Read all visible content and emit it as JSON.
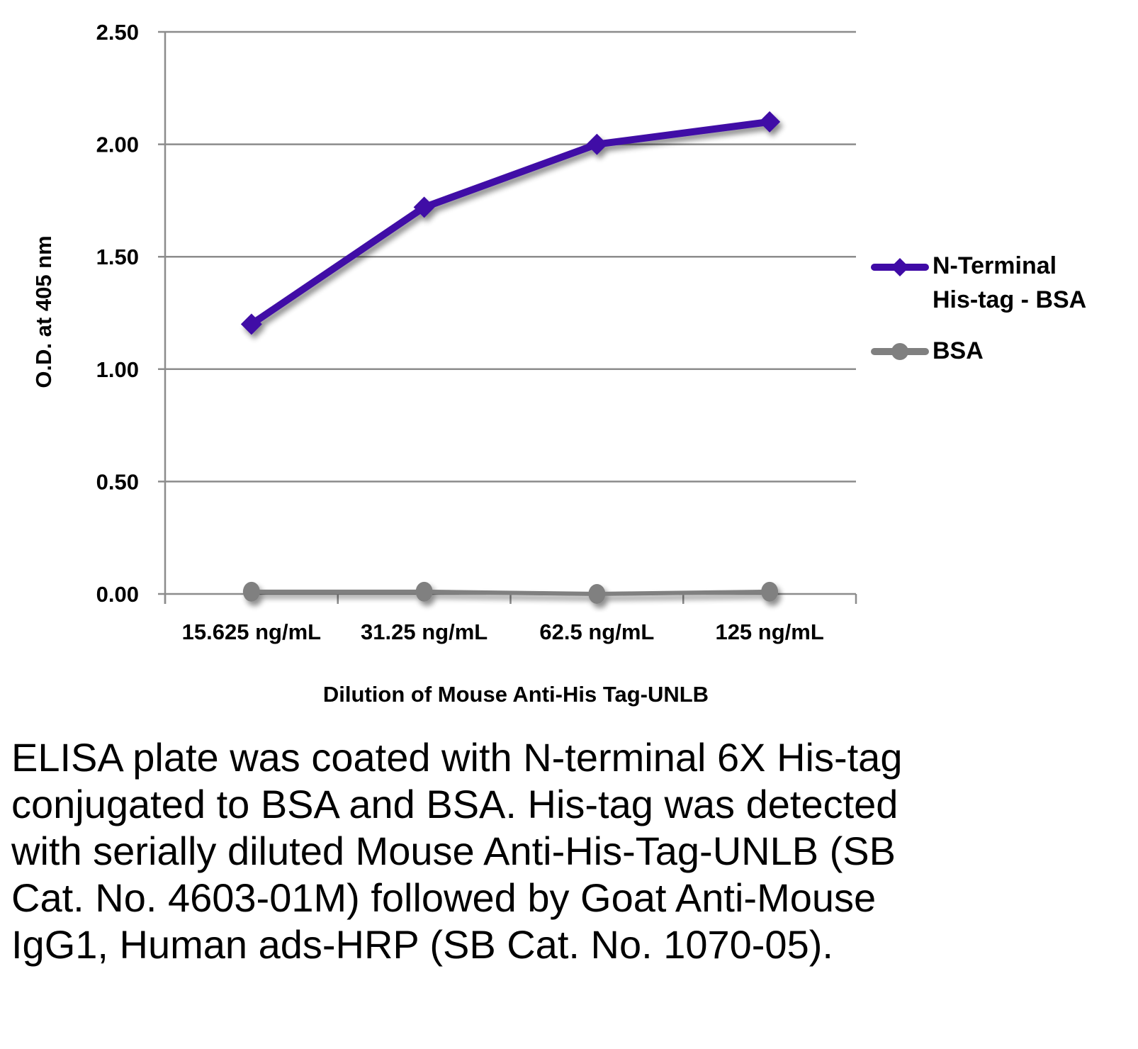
{
  "chart_data": {
    "type": "line",
    "title": "",
    "xlabel": "Dilution of Mouse Anti-His Tag-UNLB",
    "ylabel": "O.D. at 405 nm",
    "categories": [
      "15.625 ng/mL",
      "31.25 ng/mL",
      "62.5 ng/mL",
      "125 ng/mL"
    ],
    "ylim": [
      0,
      2.5
    ],
    "yticks": [
      0,
      0.5,
      1.0,
      1.5,
      2.0,
      2.5
    ],
    "ytick_labels": [
      "0.00",
      "0.50",
      "1.00",
      "1.50",
      "2.00",
      "2.50"
    ],
    "grid": true,
    "legend_position": "right",
    "series": [
      {
        "name": "N-Terminal His-tag - BSA",
        "legend_lines": [
          "N-Terminal",
          "His-tag - BSA"
        ],
        "values": [
          1.2,
          1.72,
          2.0,
          2.1
        ],
        "color": "#3f0aa6",
        "marker": "diamond"
      },
      {
        "name": "BSA",
        "legend_lines": [
          "BSA"
        ],
        "values": [
          0.01,
          0.01,
          0.0,
          0.01
        ],
        "color": "#808080",
        "marker": "circle"
      }
    ]
  },
  "caption": "ELISA plate was coated with N-terminal 6X His-tag conjugated to BSA and BSA.  His-tag was detected with serially diluted Mouse Anti-His-Tag-UNLB (SB Cat. No. 4603-01M) followed by Goat Anti-Mouse IgG1, Human ads-HRP (SB Cat. No. 1070-05)."
}
